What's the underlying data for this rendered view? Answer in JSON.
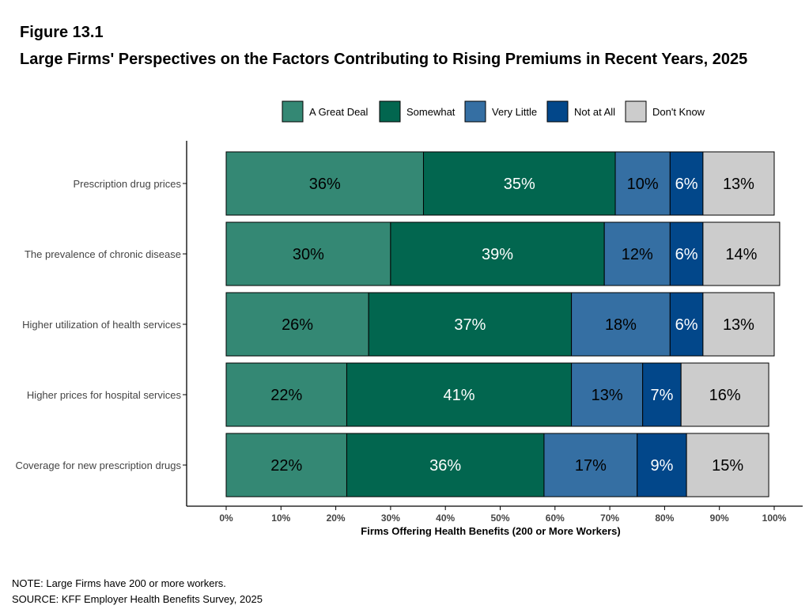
{
  "figure_label": "Figure 13.1",
  "title": "Large Firms' Perspectives on the Factors Contributing to Rising Premiums in Recent Years, 2025",
  "note": "NOTE: Large Firms have 200 or more workers.",
  "source": "SOURCE: KFF Employer Health Benefits Survey, 2025",
  "chart_data": {
    "type": "bar",
    "orientation": "horizontal",
    "stacked": true,
    "xlabel": "Firms Offering Health Benefits (200 or More Workers)",
    "xlim": [
      0,
      100
    ],
    "x_ticks": [
      "0%",
      "10%",
      "20%",
      "30%",
      "40%",
      "50%",
      "60%",
      "70%",
      "80%",
      "90%",
      "100%"
    ],
    "legend_position": "top",
    "grid": false,
    "categories": [
      "Prescription drug prices",
      "The prevalence of chronic disease",
      "Higher utilization of health services",
      "Higher prices for hospital services",
      "Coverage for new prescription drugs"
    ],
    "series": [
      {
        "name": "A Great Deal",
        "color": "#348874",
        "label_color": "#000000",
        "values": [
          36,
          30,
          26,
          22,
          22
        ]
      },
      {
        "name": "Somewhat",
        "color": "#02664f",
        "label_color": "#ffffff",
        "values": [
          35,
          39,
          37,
          41,
          36
        ]
      },
      {
        "name": "Very Little",
        "color": "#356fa3",
        "label_color": "#000000",
        "values": [
          10,
          12,
          18,
          13,
          17
        ]
      },
      {
        "name": "Not at All",
        "color": "#02478a",
        "label_color": "#ffffff",
        "values": [
          6,
          6,
          6,
          7,
          9
        ]
      },
      {
        "name": "Don't Know",
        "color": "#cccccc",
        "label_color": "#000000",
        "values": [
          13,
          14,
          13,
          16,
          15
        ]
      }
    ],
    "data_labels": [
      [
        "36%",
        "35%",
        "10%",
        "6%",
        "13%"
      ],
      [
        "30%",
        "39%",
        "12%",
        "6%",
        "14%"
      ],
      [
        "26%",
        "37%",
        "18%",
        "6%",
        "13%"
      ],
      [
        "22%",
        "41%",
        "13%",
        "7%",
        "16%"
      ],
      [
        "22%",
        "36%",
        "17%",
        "9%",
        "15%"
      ]
    ]
  }
}
